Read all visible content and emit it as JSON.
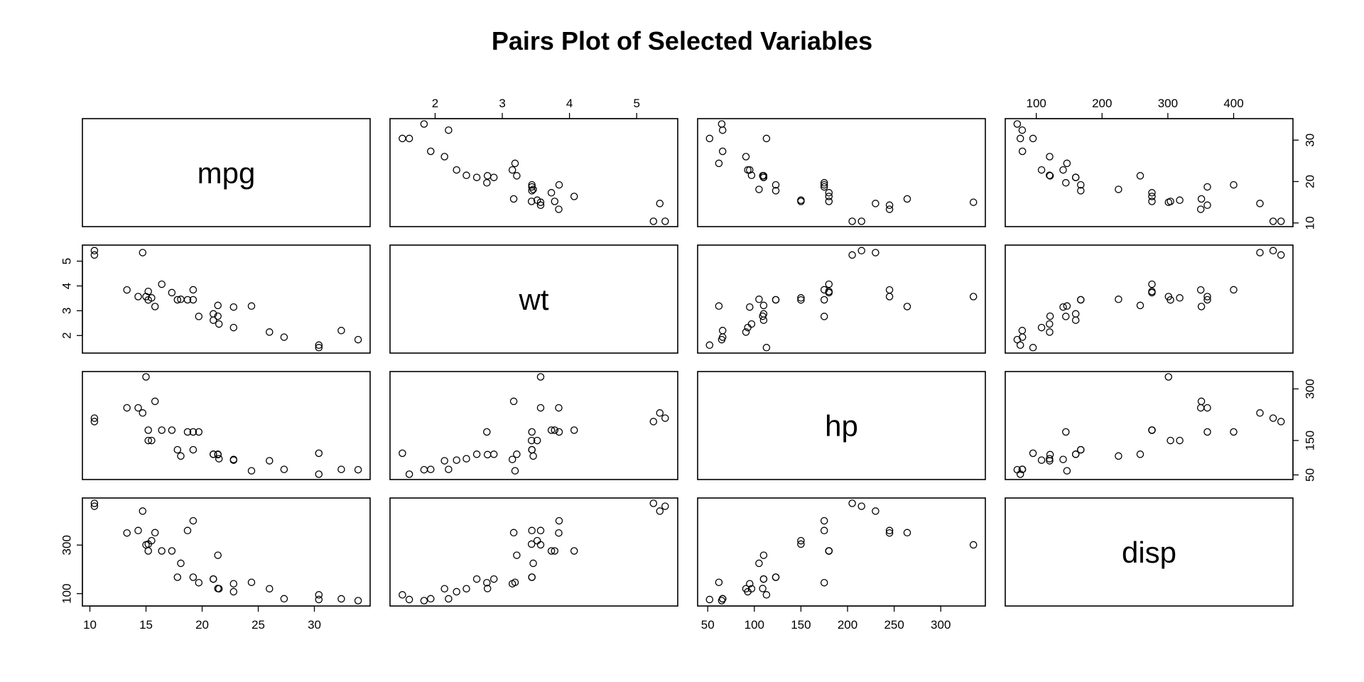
{
  "chart_data": {
    "type": "scatter",
    "title": "Pairs Plot of Selected Variables",
    "variables": [
      "mpg",
      "wt",
      "hp",
      "disp"
    ],
    "observations": {
      "mpg": [
        21.0,
        21.0,
        22.8,
        21.4,
        18.7,
        18.1,
        14.3,
        24.4,
        22.8,
        19.2,
        17.8,
        16.4,
        17.3,
        15.2,
        10.4,
        10.4,
        14.7,
        32.4,
        30.4,
        33.9,
        21.5,
        15.5,
        15.2,
        13.3,
        19.2,
        27.3,
        26.0,
        30.4,
        15.8,
        19.7,
        15.0,
        21.4
      ],
      "wt": [
        2.62,
        2.875,
        2.32,
        3.215,
        3.44,
        3.46,
        3.57,
        3.19,
        3.15,
        3.44,
        3.44,
        4.07,
        3.73,
        3.78,
        5.25,
        5.424,
        5.345,
        2.2,
        1.615,
        1.835,
        2.465,
        3.52,
        3.435,
        3.84,
        3.845,
        1.935,
        2.14,
        1.513,
        3.17,
        2.77,
        3.57,
        2.78
      ],
      "hp": [
        110,
        110,
        93,
        110,
        175,
        105,
        245,
        62,
        95,
        123,
        123,
        180,
        180,
        180,
        205,
        215,
        230,
        66,
        52,
        65,
        97,
        150,
        150,
        245,
        175,
        66,
        91,
        113,
        264,
        175,
        335,
        109
      ],
      "disp": [
        160.0,
        160.0,
        108.0,
        258.0,
        360.0,
        225.0,
        360.0,
        146.7,
        140.8,
        167.6,
        167.6,
        275.8,
        275.8,
        275.8,
        472.0,
        460.0,
        440.0,
        78.7,
        75.7,
        71.1,
        120.1,
        318.0,
        304.0,
        350.0,
        400.0,
        79.0,
        120.3,
        95.1,
        351.0,
        145.0,
        301.0,
        121.0
      ]
    },
    "axis_ranges": {
      "mpg": [
        9.46,
        34.84
      ],
      "wt": [
        1.35,
        5.59
      ],
      "hp": [
        40.7,
        346.3
      ],
      "disp": [
        55.0,
        488.0
      ]
    },
    "ticks": {
      "mpg": [
        10,
        15,
        20,
        25,
        30
      ],
      "wt": [
        2,
        3,
        4,
        5
      ],
      "hp": [
        50,
        150,
        250,
        300
      ],
      "disp": [
        100,
        300
      ]
    },
    "tick_labels": {
      "mpg": {
        "bottom": [
          "10",
          "15",
          "20",
          "25",
          "30"
        ],
        "right": [
          "10",
          "20",
          "30"
        ]
      },
      "wt": {
        "top": [
          "2",
          "3",
          "4",
          "5"
        ],
        "left": [
          "2",
          "3",
          "4",
          "5"
        ]
      },
      "hp": {
        "bottom": [
          "50",
          "100",
          "150",
          "200",
          "250",
          "300"
        ],
        "right": [
          "50",
          "150",
          "300"
        ]
      },
      "disp": {
        "top": [
          "100",
          "200",
          "300",
          "400"
        ],
        "left": [
          "100",
          "300"
        ]
      }
    },
    "grid": false,
    "legend": "none"
  }
}
